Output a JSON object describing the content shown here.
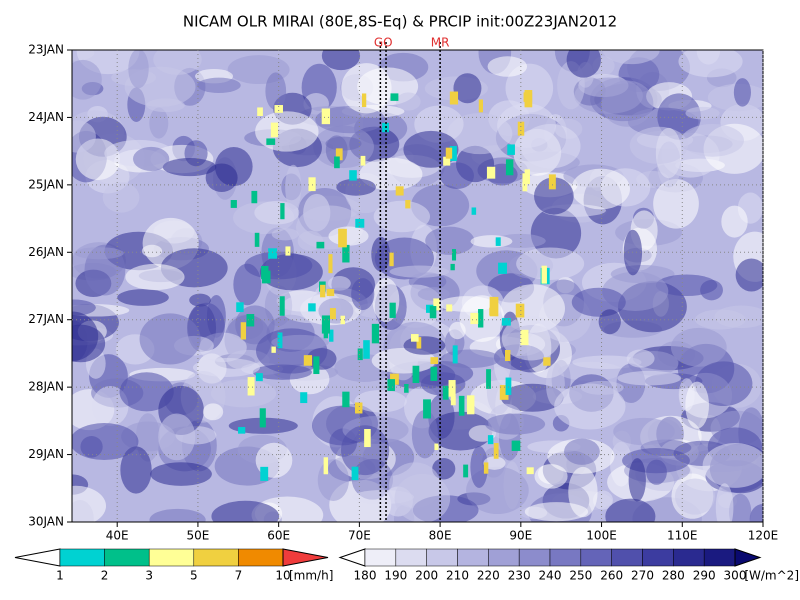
{
  "chart_data": {
    "type": "hovmoller",
    "title": "NICAM OLR MIRAI (80E,8S-Eq) & PRCIP init:00Z23JAN2012",
    "xlim": [
      34.4,
      120
    ],
    "xticks": [
      {
        "value": 40,
        "label": "40E"
      },
      {
        "value": 50,
        "label": "50E"
      },
      {
        "value": 60,
        "label": "60E"
      },
      {
        "value": 70,
        "label": "70E"
      },
      {
        "value": 80,
        "label": "80E"
      },
      {
        "value": 90,
        "label": "90E"
      },
      {
        "value": 100,
        "label": "100E"
      },
      {
        "value": 110,
        "label": "110E"
      },
      {
        "value": 120,
        "label": "120E"
      }
    ],
    "categories": [
      "23JAN",
      "24JAN",
      "25JAN",
      "26JAN",
      "27JAN",
      "28JAN",
      "29JAN",
      "30JAN"
    ],
    "grid": true,
    "markers": [
      {
        "label": "GO",
        "x": [
          72.6,
          73.3
        ]
      },
      {
        "label": "MR",
        "x": [
          80
        ]
      }
    ],
    "colorbars": [
      {
        "levels": [
          1,
          2,
          3,
          5,
          7,
          10
        ],
        "units": "[mm/h]",
        "colors": [
          "#ffffff",
          "#00d2d2",
          "#00c08a",
          "#ffff96",
          "#f0d040",
          "#f08a00",
          "#f03c3c"
        ]
      },
      {
        "levels": [
          180,
          190,
          200,
          210,
          220,
          230,
          240,
          250,
          260,
          270,
          280,
          290,
          300
        ],
        "units": "[W/m^2]",
        "colors": [
          "#ffffff",
          "#eeeef8",
          "#dcdcf0",
          "#c8c8e8",
          "#b4b4e0",
          "#a0a0d6",
          "#8c8ccc",
          "#7878c2",
          "#6464b8",
          "#5050ac",
          "#3c3ca0",
          "#2a2a90",
          "#1a1a80",
          "#0a0a70"
        ]
      }
    ]
  }
}
